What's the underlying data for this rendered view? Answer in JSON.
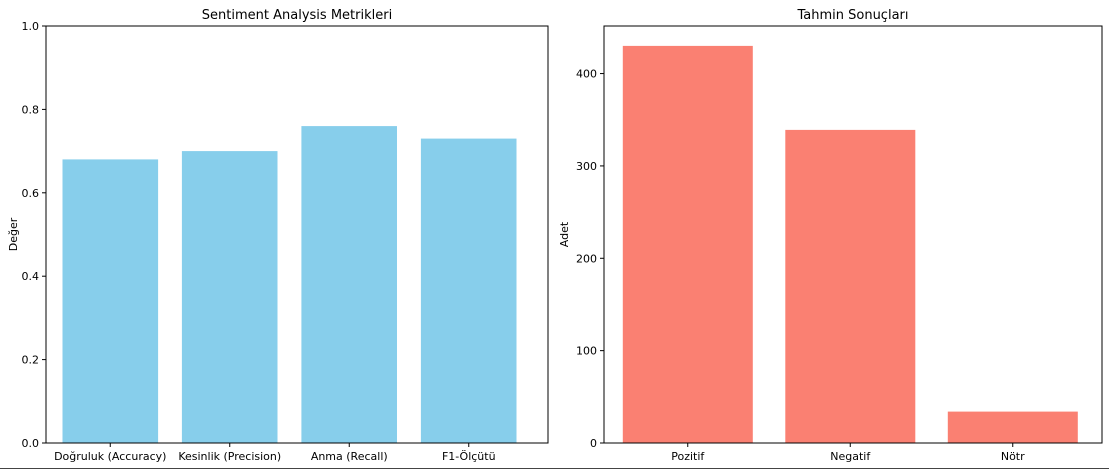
{
  "chart_data": [
    {
      "type": "bar",
      "title": "Sentiment Analysis Metrikleri",
      "xlabel": "",
      "ylabel": "Değer",
      "categories": [
        "Doğruluk (Accuracy)",
        "Kesinlik (Precision)",
        "Anma (Recall)",
        "F1-Ölçütü"
      ],
      "values": [
        0.68,
        0.7,
        0.76,
        0.73
      ],
      "ylim": [
        0,
        1.0
      ],
      "yticks": [
        "0.0",
        "0.2",
        "0.4",
        "0.6",
        "0.8",
        "1.0"
      ],
      "color": "#87CEEB",
      "grid": false
    },
    {
      "type": "bar",
      "title": "Tahmin Sonuçları",
      "xlabel": "",
      "ylabel": "Adet",
      "categories": [
        "Pozitif",
        "Negatif",
        "Nötr"
      ],
      "values": [
        430,
        339,
        34
      ],
      "ylim": [
        0,
        451.5
      ],
      "yticks": [
        "0",
        "100",
        "200",
        "300",
        "400"
      ],
      "color": "#FA8072",
      "grid": false
    }
  ]
}
